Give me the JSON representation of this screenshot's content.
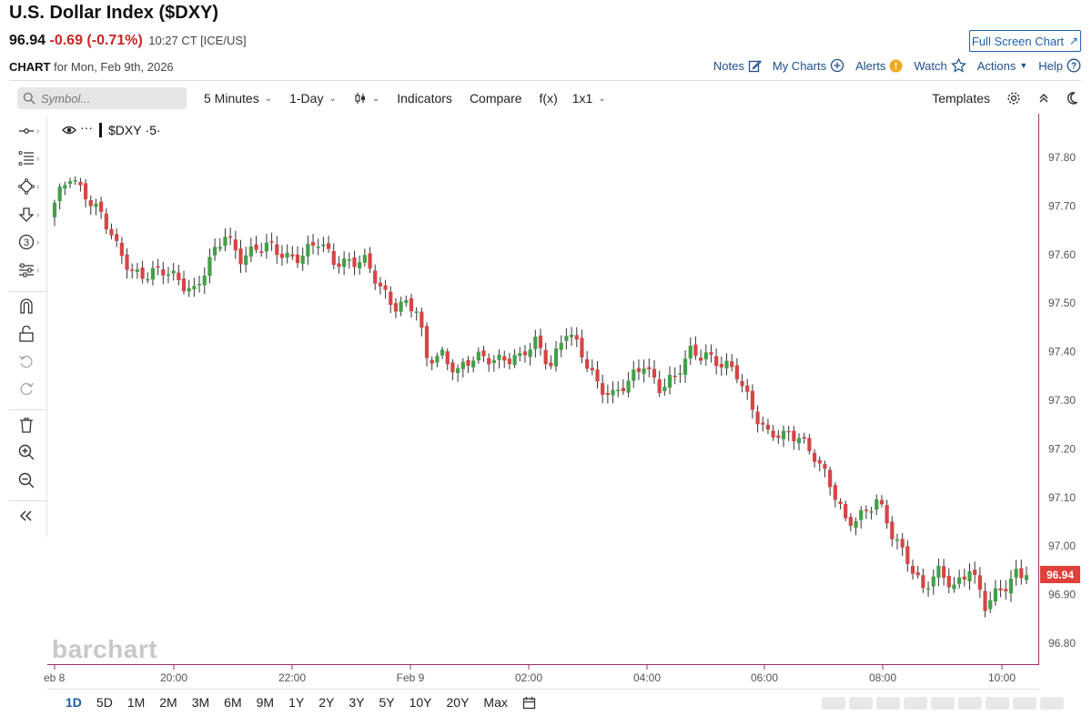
{
  "header": {
    "title": "U.S. Dollar Index ($DXY)",
    "last": "96.94",
    "change": "-0.69 (-0.71%)",
    "time": "10:27 CT [ICE/US]",
    "full_screen": "Full Screen Chart",
    "chart_label": "CHART",
    "chart_for": "for Mon, Feb 9th, 2026"
  },
  "top_links": {
    "notes": "Notes",
    "my_charts": "My Charts",
    "alerts": "Alerts",
    "watch": "Watch",
    "actions": "Actions",
    "help": "Help"
  },
  "toolbar": {
    "search_placeholder": "Symbol...",
    "interval": "5 Minutes",
    "period": "1-Day",
    "indicators": "Indicators",
    "compare": "Compare",
    "fx": "f(x)",
    "layout": "1x1",
    "templates": "Templates"
  },
  "legend": {
    "symbol": "$DXY",
    "interval": "·5·"
  },
  "watermark": "barchart",
  "ranges": [
    "1D",
    "5D",
    "1M",
    "2M",
    "3M",
    "6M",
    "9M",
    "1Y",
    "2Y",
    "3Y",
    "5Y",
    "10Y",
    "20Y",
    "Max"
  ],
  "active_range": "1D",
  "colors": {
    "up": "#43a047",
    "down": "#d64545",
    "accent": "#1f5fa8",
    "price_tag": "#e0403a",
    "axis_border": "#9c2f6e"
  },
  "chart_data": {
    "type": "candlestick",
    "y_ticks": [
      "97.80",
      "97.70",
      "97.60",
      "97.50",
      "97.40",
      "97.30",
      "97.20",
      "97.10",
      "97.00",
      "96.90",
      "96.80"
    ],
    "ylim": [
      96.76,
      97.88
    ],
    "x_ticks": [
      "eb 8",
      "20:00",
      "22:00",
      "Feb 9",
      "02:00",
      "04:00",
      "06:00",
      "08:00",
      "10:00"
    ],
    "last_price_label": "96.94",
    "last_price": 96.94,
    "anchors": [
      [
        0,
        97.7
      ],
      [
        3,
        97.76
      ],
      [
        6,
        97.73
      ],
      [
        9,
        97.68
      ],
      [
        12,
        97.61
      ],
      [
        15,
        97.57
      ],
      [
        18,
        97.56
      ],
      [
        21,
        97.56
      ],
      [
        24,
        97.55
      ],
      [
        27,
        97.53
      ],
      [
        30,
        97.58
      ],
      [
        33,
        97.64
      ],
      [
        36,
        97.6
      ],
      [
        39,
        97.61
      ],
      [
        42,
        97.61
      ],
      [
        45,
        97.6
      ],
      [
        48,
        97.6
      ],
      [
        51,
        97.62
      ],
      [
        54,
        97.59
      ],
      [
        57,
        97.59
      ],
      [
        60,
        97.58
      ],
      [
        63,
        97.53
      ],
      [
        66,
        97.5
      ],
      [
        68,
        97.5
      ],
      [
        70,
        97.48
      ],
      [
        72,
        97.38
      ],
      [
        75,
        97.4
      ],
      [
        78,
        97.36
      ],
      [
        81,
        97.38
      ],
      [
        84,
        97.39
      ],
      [
        87,
        97.39
      ],
      [
        90,
        97.38
      ],
      [
        93,
        97.42
      ],
      [
        96,
        97.38
      ],
      [
        99,
        97.44
      ],
      [
        102,
        97.39
      ],
      [
        105,
        97.34
      ],
      [
        108,
        97.31
      ],
      [
        111,
        97.33
      ],
      [
        114,
        97.38
      ],
      [
        117,
        97.33
      ],
      [
        120,
        97.34
      ],
      [
        123,
        97.4
      ],
      [
        126,
        97.4
      ],
      [
        129,
        97.37
      ],
      [
        132,
        97.35
      ],
      [
        135,
        97.29
      ],
      [
        138,
        97.23
      ],
      [
        141,
        97.22
      ],
      [
        144,
        97.23
      ],
      [
        147,
        97.19
      ],
      [
        150,
        97.12
      ],
      [
        153,
        97.05
      ],
      [
        156,
        97.07
      ],
      [
        159,
        97.09
      ],
      [
        162,
        97.02
      ],
      [
        165,
        96.98
      ],
      [
        168,
        96.91
      ],
      [
        171,
        96.94
      ],
      [
        174,
        96.92
      ],
      [
        177,
        96.96
      ],
      [
        180,
        96.87
      ],
      [
        183,
        96.91
      ],
      [
        186,
        96.95
      ],
      [
        188,
        96.94
      ]
    ]
  }
}
